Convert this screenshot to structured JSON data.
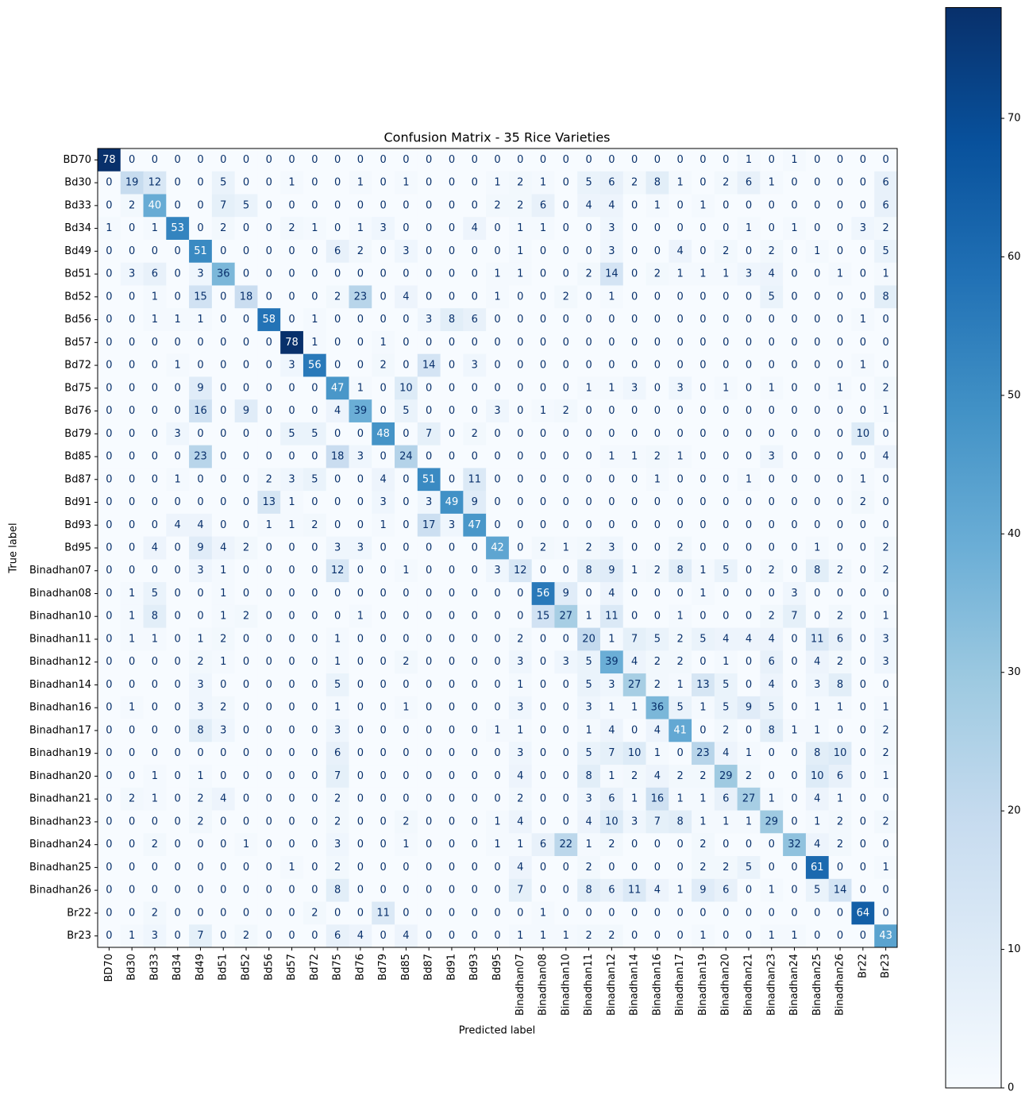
{
  "chart_data": {
    "type": "heatmap",
    "title": "Confusion Matrix - 35 Rice Varieties",
    "xlabel": "Predicted label",
    "ylabel": "True label",
    "categories": [
      "BD70",
      "Bd30",
      "Bd33",
      "Bd34",
      "Bd49",
      "Bd51",
      "Bd52",
      "Bd56",
      "Bd57",
      "Bd72",
      "Bd75",
      "Bd76",
      "Bd79",
      "Bd85",
      "Bd87",
      "Bd91",
      "Bd93",
      "Bd95",
      "Binadhan07",
      "Binadhan08",
      "Binadhan10",
      "Binadhan11",
      "Binadhan12",
      "Binadhan14",
      "Binadhan16",
      "Binadhan17",
      "Binadhan19",
      "Binadhan20",
      "Binadhan21",
      "Binadhan23",
      "Binadhan24",
      "Binadhan25",
      "Binadhan26",
      "Br22",
      "Br23"
    ],
    "values": [
      [
        78,
        0,
        0,
        0,
        0,
        0,
        0,
        0,
        0,
        0,
        0,
        0,
        0,
        0,
        0,
        0,
        0,
        0,
        0,
        0,
        0,
        0,
        0,
        0,
        0,
        0,
        0,
        0,
        1,
        0,
        1,
        0,
        0,
        0,
        0
      ],
      [
        0,
        19,
        12,
        0,
        0,
        5,
        0,
        0,
        1,
        0,
        0,
        1,
        0,
        1,
        0,
        0,
        0,
        1,
        2,
        1,
        0,
        5,
        6,
        2,
        8,
        1,
        0,
        2,
        6,
        1,
        0,
        0,
        0,
        0,
        6
      ],
      [
        0,
        2,
        40,
        0,
        0,
        7,
        5,
        0,
        0,
        0,
        0,
        0,
        0,
        0,
        0,
        0,
        0,
        2,
        2,
        6,
        0,
        4,
        4,
        0,
        1,
        0,
        1,
        0,
        0,
        0,
        0,
        0,
        0,
        0,
        6
      ],
      [
        1,
        0,
        1,
        53,
        0,
        2,
        0,
        0,
        2,
        1,
        0,
        1,
        3,
        0,
        0,
        0,
        4,
        0,
        1,
        1,
        0,
        0,
        3,
        0,
        0,
        0,
        0,
        0,
        1,
        0,
        1,
        0,
        0,
        3,
        2
      ],
      [
        0,
        0,
        0,
        0,
        51,
        0,
        0,
        0,
        0,
        0,
        6,
        2,
        0,
        3,
        0,
        0,
        0,
        0,
        1,
        0,
        0,
        0,
        3,
        0,
        0,
        4,
        0,
        2,
        0,
        2,
        0,
        1,
        0,
        0,
        5
      ],
      [
        0,
        3,
        6,
        0,
        3,
        36,
        0,
        0,
        0,
        0,
        0,
        0,
        0,
        0,
        0,
        0,
        0,
        1,
        1,
        0,
        0,
        2,
        14,
        0,
        2,
        1,
        1,
        1,
        3,
        4,
        0,
        0,
        1,
        0,
        1
      ],
      [
        0,
        0,
        1,
        0,
        15,
        0,
        18,
        0,
        0,
        0,
        2,
        23,
        0,
        4,
        0,
        0,
        0,
        1,
        0,
        0,
        2,
        0,
        1,
        0,
        0,
        0,
        0,
        0,
        0,
        5,
        0,
        0,
        0,
        0,
        8
      ],
      [
        0,
        0,
        1,
        1,
        1,
        0,
        0,
        58,
        0,
        1,
        0,
        0,
        0,
        0,
        3,
        8,
        6,
        0,
        0,
        0,
        0,
        0,
        0,
        0,
        0,
        0,
        0,
        0,
        0,
        0,
        0,
        0,
        0,
        1,
        0
      ],
      [
        0,
        0,
        0,
        0,
        0,
        0,
        0,
        0,
        78,
        1,
        0,
        0,
        1,
        0,
        0,
        0,
        0,
        0,
        0,
        0,
        0,
        0,
        0,
        0,
        0,
        0,
        0,
        0,
        0,
        0,
        0,
        0,
        0,
        0,
        0
      ],
      [
        0,
        0,
        0,
        1,
        0,
        0,
        0,
        0,
        3,
        56,
        0,
        0,
        2,
        0,
        14,
        0,
        3,
        0,
        0,
        0,
        0,
        0,
        0,
        0,
        0,
        0,
        0,
        0,
        0,
        0,
        0,
        0,
        0,
        1,
        0
      ],
      [
        0,
        0,
        0,
        0,
        9,
        0,
        0,
        0,
        0,
        0,
        47,
        1,
        0,
        10,
        0,
        0,
        0,
        0,
        0,
        0,
        0,
        1,
        1,
        3,
        0,
        3,
        0,
        1,
        0,
        1,
        0,
        0,
        1,
        0,
        2
      ],
      [
        0,
        0,
        0,
        0,
        16,
        0,
        9,
        0,
        0,
        0,
        4,
        39,
        0,
        5,
        0,
        0,
        0,
        3,
        0,
        1,
        2,
        0,
        0,
        0,
        0,
        0,
        0,
        0,
        0,
        0,
        0,
        0,
        0,
        0,
        1
      ],
      [
        0,
        0,
        0,
        3,
        0,
        0,
        0,
        0,
        5,
        5,
        0,
        0,
        48,
        0,
        7,
        0,
        2,
        0,
        0,
        0,
        0,
        0,
        0,
        0,
        0,
        0,
        0,
        0,
        0,
        0,
        0,
        0,
        0,
        10,
        0
      ],
      [
        0,
        0,
        0,
        0,
        23,
        0,
        0,
        0,
        0,
        0,
        18,
        3,
        0,
        24,
        0,
        0,
        0,
        0,
        0,
        0,
        0,
        0,
        1,
        1,
        2,
        1,
        0,
        0,
        0,
        3,
        0,
        0,
        0,
        0,
        4
      ],
      [
        0,
        0,
        0,
        1,
        0,
        0,
        0,
        2,
        3,
        5,
        0,
        0,
        4,
        0,
        51,
        0,
        11,
        0,
        0,
        0,
        0,
        0,
        0,
        0,
        1,
        0,
        0,
        0,
        1,
        0,
        0,
        0,
        0,
        1,
        0
      ],
      [
        0,
        0,
        0,
        0,
        0,
        0,
        0,
        13,
        1,
        0,
        0,
        0,
        3,
        0,
        3,
        49,
        9,
        0,
        0,
        0,
        0,
        0,
        0,
        0,
        0,
        0,
        0,
        0,
        0,
        0,
        0,
        0,
        0,
        2,
        0
      ],
      [
        0,
        0,
        0,
        4,
        4,
        0,
        0,
        1,
        1,
        2,
        0,
        0,
        1,
        0,
        17,
        3,
        47,
        0,
        0,
        0,
        0,
        0,
        0,
        0,
        0,
        0,
        0,
        0,
        0,
        0,
        0,
        0,
        0,
        0,
        0
      ],
      [
        0,
        0,
        4,
        0,
        9,
        4,
        2,
        0,
        0,
        0,
        3,
        3,
        0,
        0,
        0,
        0,
        0,
        42,
        0,
        2,
        1,
        2,
        3,
        0,
        0,
        2,
        0,
        0,
        0,
        0,
        0,
        1,
        0,
        0,
        2
      ],
      [
        0,
        0,
        0,
        0,
        3,
        1,
        0,
        0,
        0,
        0,
        12,
        0,
        0,
        1,
        0,
        0,
        0,
        3,
        12,
        0,
        0,
        8,
        9,
        1,
        2,
        8,
        1,
        5,
        0,
        2,
        0,
        8,
        2,
        0,
        2
      ],
      [
        0,
        1,
        5,
        0,
        0,
        1,
        0,
        0,
        0,
        0,
        0,
        0,
        0,
        0,
        0,
        0,
        0,
        0,
        0,
        56,
        9,
        0,
        4,
        0,
        0,
        0,
        1,
        0,
        0,
        0,
        3,
        0,
        0,
        0,
        0
      ],
      [
        0,
        1,
        8,
        0,
        0,
        1,
        2,
        0,
        0,
        0,
        0,
        1,
        0,
        0,
        0,
        0,
        0,
        0,
        0,
        15,
        27,
        1,
        11,
        0,
        0,
        1,
        0,
        0,
        0,
        2,
        7,
        0,
        2,
        0,
        1
      ],
      [
        0,
        1,
        1,
        0,
        1,
        2,
        0,
        0,
        0,
        0,
        1,
        0,
        0,
        0,
        0,
        0,
        0,
        0,
        2,
        0,
        0,
        20,
        1,
        7,
        5,
        2,
        5,
        4,
        4,
        4,
        0,
        11,
        6,
        0,
        3
      ],
      [
        0,
        0,
        0,
        0,
        2,
        1,
        0,
        0,
        0,
        0,
        1,
        0,
        0,
        2,
        0,
        0,
        0,
        0,
        3,
        0,
        3,
        5,
        39,
        4,
        2,
        2,
        0,
        1,
        0,
        6,
        0,
        4,
        2,
        0,
        3
      ],
      [
        0,
        0,
        0,
        0,
        3,
        0,
        0,
        0,
        0,
        0,
        5,
        0,
        0,
        0,
        0,
        0,
        0,
        0,
        1,
        0,
        0,
        5,
        3,
        27,
        2,
        1,
        13,
        5,
        0,
        4,
        0,
        3,
        8,
        0,
        0
      ],
      [
        0,
        1,
        0,
        0,
        3,
        2,
        0,
        0,
        0,
        0,
        1,
        0,
        0,
        1,
        0,
        0,
        0,
        0,
        3,
        0,
        0,
        3,
        1,
        1,
        36,
        5,
        1,
        5,
        9,
        5,
        0,
        1,
        1,
        0,
        1
      ],
      [
        0,
        0,
        0,
        0,
        8,
        3,
        0,
        0,
        0,
        0,
        3,
        0,
        0,
        0,
        0,
        0,
        0,
        1,
        1,
        0,
        0,
        1,
        4,
        0,
        4,
        41,
        0,
        2,
        0,
        8,
        1,
        1,
        0,
        0,
        2
      ],
      [
        0,
        0,
        0,
        0,
        0,
        0,
        0,
        0,
        0,
        0,
        6,
        0,
        0,
        0,
        0,
        0,
        0,
        0,
        3,
        0,
        0,
        5,
        7,
        10,
        1,
        0,
        23,
        4,
        1,
        0,
        0,
        8,
        10,
        0,
        2
      ],
      [
        0,
        0,
        1,
        0,
        1,
        0,
        0,
        0,
        0,
        0,
        7,
        0,
        0,
        0,
        0,
        0,
        0,
        0,
        4,
        0,
        0,
        8,
        1,
        2,
        4,
        2,
        2,
        29,
        2,
        0,
        0,
        10,
        6,
        0,
        1
      ],
      [
        0,
        2,
        1,
        0,
        2,
        4,
        0,
        0,
        0,
        0,
        2,
        0,
        0,
        0,
        0,
        0,
        0,
        0,
        2,
        0,
        0,
        3,
        6,
        1,
        16,
        1,
        1,
        6,
        27,
        1,
        0,
        4,
        1,
        0,
        0
      ],
      [
        0,
        0,
        0,
        0,
        2,
        0,
        0,
        0,
        0,
        0,
        2,
        0,
        0,
        2,
        0,
        0,
        0,
        1,
        4,
        0,
        0,
        4,
        10,
        3,
        7,
        8,
        1,
        1,
        1,
        29,
        0,
        1,
        2,
        0,
        2
      ],
      [
        0,
        0,
        2,
        0,
        0,
        0,
        1,
        0,
        0,
        0,
        3,
        0,
        0,
        1,
        0,
        0,
        0,
        1,
        1,
        6,
        22,
        1,
        2,
        0,
        0,
        0,
        2,
        0,
        0,
        0,
        32,
        4,
        2,
        0,
        0
      ],
      [
        0,
        0,
        0,
        0,
        0,
        0,
        0,
        0,
        1,
        0,
        2,
        0,
        0,
        0,
        0,
        0,
        0,
        0,
        4,
        0,
        0,
        2,
        0,
        0,
        0,
        0,
        2,
        2,
        5,
        0,
        0,
        61,
        0,
        0,
        1
      ],
      [
        0,
        0,
        0,
        0,
        0,
        0,
        0,
        0,
        0,
        0,
        8,
        0,
        0,
        0,
        0,
        0,
        0,
        0,
        7,
        0,
        0,
        8,
        6,
        11,
        4,
        1,
        9,
        6,
        0,
        1,
        0,
        5,
        14,
        0,
        0
      ],
      [
        0,
        0,
        2,
        0,
        0,
        0,
        0,
        0,
        0,
        2,
        0,
        0,
        11,
        0,
        0,
        0,
        0,
        0,
        0,
        1,
        0,
        0,
        0,
        0,
        0,
        0,
        0,
        0,
        0,
        0,
        0,
        0,
        0,
        64,
        0
      ],
      [
        0,
        1,
        3,
        0,
        7,
        0,
        2,
        0,
        0,
        0,
        6,
        4,
        0,
        4,
        0,
        0,
        0,
        0,
        1,
        1,
        1,
        2,
        2,
        0,
        0,
        0,
        1,
        0,
        0,
        1,
        1,
        0,
        0,
        0,
        43
      ]
    ],
    "colormap": "Blues",
    "clim": [
      0,
      78
    ],
    "cticks": [
      0,
      10,
      20,
      30,
      40,
      50,
      60,
      70
    ]
  }
}
